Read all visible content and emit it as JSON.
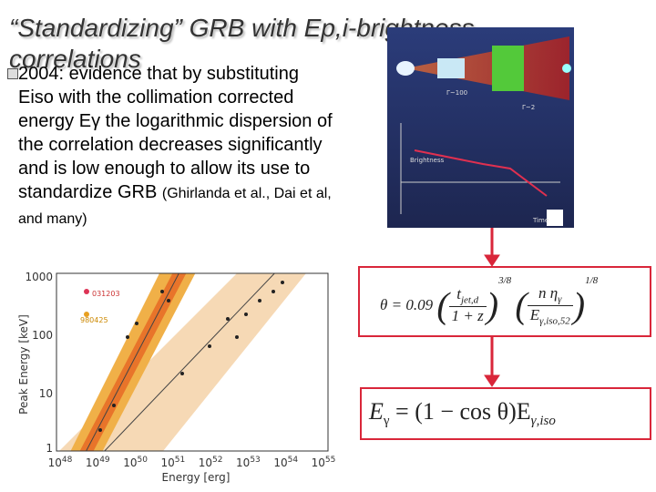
{
  "title": "“Standardizing” GRB with Ep,i-brightness correlations",
  "bullet": {
    "lead": "2004: evidence that by substituting Eiso with the collimation corrected energy E",
    "gamma": "γ",
    "rest": " the logarithmic dispersion of the correlation decreases significantly and is low enough to allow its use to standardize GRB ",
    "citation": "(Ghirlanda et al., Dai et al, and many)"
  },
  "diagram": {
    "labels": [
      "Time",
      "Brightness",
      "Γ~100",
      "Γ~2"
    ]
  },
  "plot": {
    "y_label": "Peak Energy [keV]",
    "x_label": "Energy [erg]",
    "y_ticks": [
      "1",
      "10",
      "100",
      "1000"
    ],
    "x_tick_base": "10",
    "x_tick_exps": [
      "48",
      "49",
      "50",
      "51",
      "52",
      "53",
      "54",
      "55"
    ],
    "points": [
      "031203",
      "980425"
    ]
  },
  "formulas": {
    "theta": {
      "lhs": "θ = 0.09",
      "t": "t",
      "t_sub": "jet,d",
      "den1": "1 + z",
      "pow1": "3/8",
      "num2": "n η",
      "num2_sub": "γ",
      "den2": "E",
      "den2_sub": "γ,iso,52",
      "pow2": "1/8"
    },
    "energy": {
      "e": "E",
      "e_sub": "γ",
      "mid": " = (1 − cos θ)E",
      "iso_sub": "γ,iso"
    }
  }
}
